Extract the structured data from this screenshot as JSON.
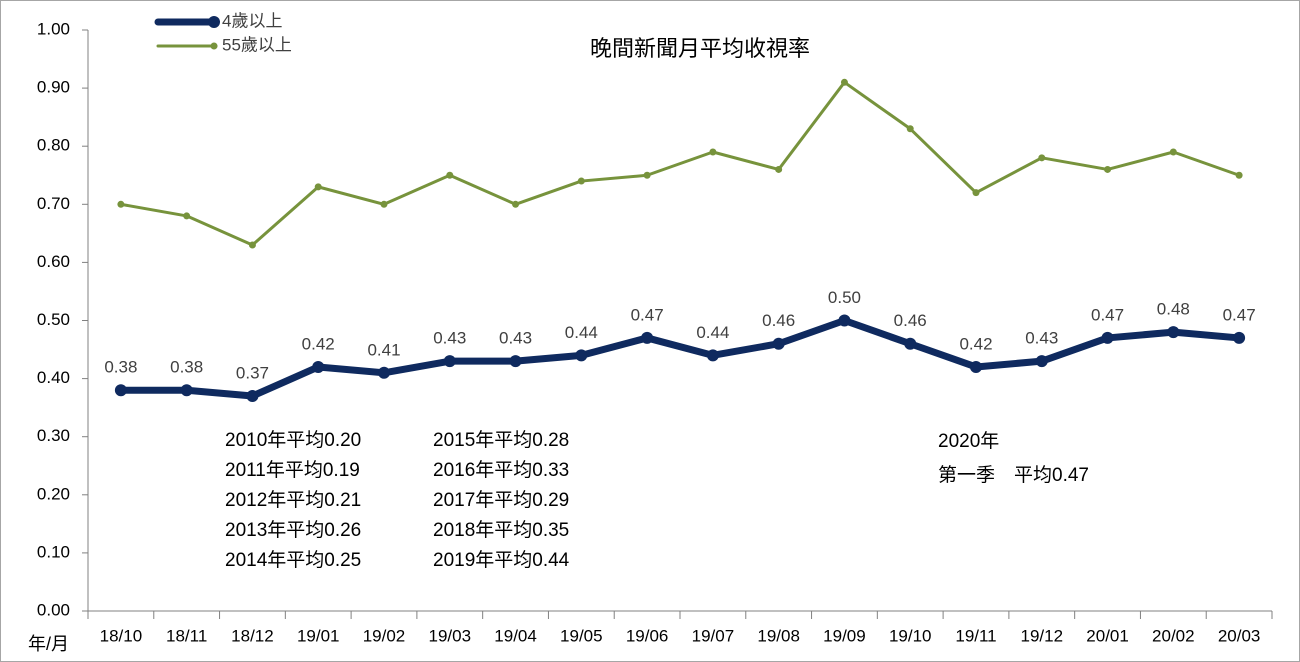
{
  "chart_data": {
    "type": "line",
    "title": "晚間新聞月平均收視率",
    "x_label": "年/月",
    "categories": [
      "18/10",
      "18/11",
      "18/12",
      "19/01",
      "19/02",
      "19/03",
      "19/04",
      "19/05",
      "19/06",
      "19/07",
      "19/08",
      "19/09",
      "19/10",
      "19/11",
      "19/12",
      "20/01",
      "20/02",
      "20/03"
    ],
    "series": [
      {
        "name": "4歲以上",
        "color": "#0f2a5f",
        "values": [
          0.38,
          0.38,
          0.37,
          0.42,
          0.41,
          0.43,
          0.43,
          0.44,
          0.47,
          0.44,
          0.46,
          0.5,
          0.46,
          0.42,
          0.43,
          0.47,
          0.48,
          0.47
        ],
        "value_labels": [
          "0.38",
          "0.38",
          "0.37",
          "0.42",
          "0.41",
          "0.43",
          "0.43",
          "0.44",
          "0.47",
          "0.44",
          "0.46",
          "0.50",
          "0.46",
          "0.42",
          "0.43",
          "0.47",
          "0.48",
          "0.47"
        ]
      },
      {
        "name": "55歲以上",
        "color": "#77933c",
        "values": [
          0.7,
          0.68,
          0.63,
          0.73,
          0.7,
          0.75,
          0.7,
          0.74,
          0.75,
          0.79,
          0.76,
          0.91,
          0.83,
          0.72,
          0.78,
          0.76,
          0.79,
          0.75
        ]
      }
    ],
    "ylim": [
      0,
      1
    ],
    "yticks": [
      {
        "value": 0,
        "label": "0.00"
      },
      {
        "value": 0.1,
        "label": "0.10"
      },
      {
        "value": 0.2,
        "label": "0.20"
      },
      {
        "value": 0.3,
        "label": "0.30"
      },
      {
        "value": 0.4,
        "label": "0.40"
      },
      {
        "value": 0.5,
        "label": "0.50"
      },
      {
        "value": 0.6,
        "label": "0.60"
      },
      {
        "value": 0.7,
        "label": "0.70"
      },
      {
        "value": 0.8,
        "label": "0.80"
      },
      {
        "value": 0.9,
        "label": "0.90"
      },
      {
        "value": 1,
        "label": "1.00"
      }
    ],
    "grid": false,
    "legend": "upper-left",
    "annotations": [
      "2010年平均0.20",
      "2011年平均0.19",
      "2012年平均0.21",
      "2013年平均0.26",
      "2014年平均0.25",
      "2015年平均0.28",
      "2016年平均0.33",
      "2017年平均0.29",
      "2018年平均0.35",
      "2019年平均0.44",
      "2020年",
      "第一季　平均0.47"
    ]
  }
}
